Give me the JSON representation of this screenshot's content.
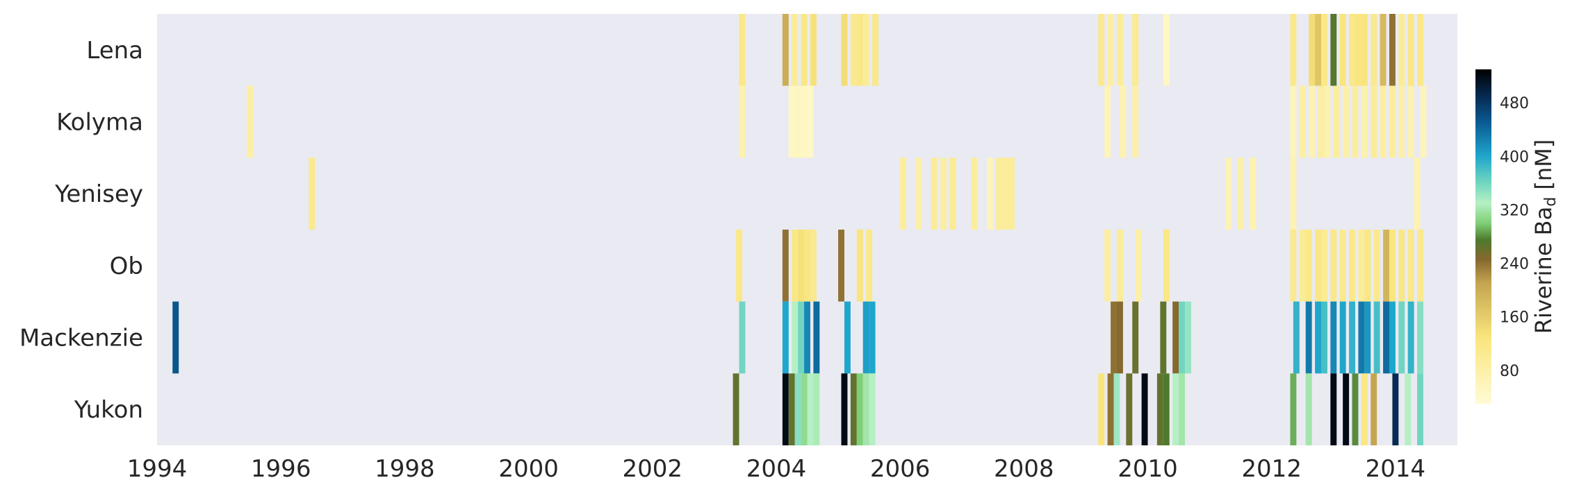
{
  "chart_data": {
    "type": "heatmap",
    "title": "",
    "xlabel": "",
    "ylabel": "",
    "xlim": [
      1994,
      2015
    ],
    "x_ticks": [
      1994,
      1996,
      1998,
      2000,
      2002,
      2004,
      2006,
      2008,
      2010,
      2012,
      2014
    ],
    "rivers": [
      "Lena",
      "Kolyma",
      "Yenisey",
      "Ob",
      "Mackenzie",
      "Yukon"
    ],
    "background_color": "#eaeaf2",
    "grid": false,
    "colorbar": {
      "label_main": "Riverine Ba",
      "label_sub": "d",
      "label_unit": " [nM]",
      "min": 30,
      "max": 530,
      "ticks": [
        80,
        160,
        240,
        320,
        400,
        480
      ],
      "colormap_stops": [
        {
          "v": 30,
          "c": "#fffbd5"
        },
        {
          "v": 130,
          "c": "#f9e57c"
        },
        {
          "v": 210,
          "c": "#c5a550"
        },
        {
          "v": 245,
          "c": "#86692e"
        },
        {
          "v": 275,
          "c": "#4e7a2e"
        },
        {
          "v": 300,
          "c": "#7fcf75"
        },
        {
          "v": 330,
          "c": "#b5f0c4"
        },
        {
          "v": 365,
          "c": "#67d1c0"
        },
        {
          "v": 400,
          "c": "#1fa6cc"
        },
        {
          "v": 450,
          "c": "#0a5c93"
        },
        {
          "v": 490,
          "c": "#062a53"
        },
        {
          "v": 530,
          "c": "#000000"
        }
      ]
    },
    "bar_width_years": 0.1,
    "series": [
      {
        "name": "Lena",
        "points": [
          {
            "t": 2003.45,
            "v": 115
          },
          {
            "t": 2004.15,
            "v": 200
          },
          {
            "t": 2004.3,
            "v": 100
          },
          {
            "t": 2004.45,
            "v": 120
          },
          {
            "t": 2004.6,
            "v": 135
          },
          {
            "t": 2005.1,
            "v": 140
          },
          {
            "t": 2005.25,
            "v": 110
          },
          {
            "t": 2005.35,
            "v": 120
          },
          {
            "t": 2005.45,
            "v": 100
          },
          {
            "t": 2005.6,
            "v": 115
          },
          {
            "t": 2009.25,
            "v": 110
          },
          {
            "t": 2009.4,
            "v": 85
          },
          {
            "t": 2009.55,
            "v": 100
          },
          {
            "t": 2009.8,
            "v": 105
          },
          {
            "t": 2010.3,
            "v": 50
          },
          {
            "t": 2012.35,
            "v": 115
          },
          {
            "t": 2012.65,
            "v": 140
          },
          {
            "t": 2012.75,
            "v": 170
          },
          {
            "t": 2012.85,
            "v": 115
          },
          {
            "t": 2013.0,
            "v": 270
          },
          {
            "t": 2013.15,
            "v": 130
          },
          {
            "t": 2013.3,
            "v": 115
          },
          {
            "t": 2013.4,
            "v": 125
          },
          {
            "t": 2013.5,
            "v": 130
          },
          {
            "t": 2013.65,
            "v": 110
          },
          {
            "t": 2013.8,
            "v": 185
          },
          {
            "t": 2013.95,
            "v": 240
          },
          {
            "t": 2014.1,
            "v": 100
          },
          {
            "t": 2014.25,
            "v": 120
          },
          {
            "t": 2014.4,
            "v": 115
          }
        ]
      },
      {
        "name": "Kolyma",
        "points": [
          {
            "t": 1995.5,
            "v": 85
          },
          {
            "t": 2003.45,
            "v": 75
          },
          {
            "t": 2004.25,
            "v": 50
          },
          {
            "t": 2004.35,
            "v": 55
          },
          {
            "t": 2004.45,
            "v": 50
          },
          {
            "t": 2004.55,
            "v": 45
          },
          {
            "t": 2009.35,
            "v": 60
          },
          {
            "t": 2009.6,
            "v": 70
          },
          {
            "t": 2009.8,
            "v": 80
          },
          {
            "t": 2012.35,
            "v": 60
          },
          {
            "t": 2012.5,
            "v": 85
          },
          {
            "t": 2012.65,
            "v": 70
          },
          {
            "t": 2012.8,
            "v": 90
          },
          {
            "t": 2012.9,
            "v": 75
          },
          {
            "t": 2013.05,
            "v": 95
          },
          {
            "t": 2013.2,
            "v": 80
          },
          {
            "t": 2013.35,
            "v": 90
          },
          {
            "t": 2013.5,
            "v": 75
          },
          {
            "t": 2013.65,
            "v": 100
          },
          {
            "t": 2013.8,
            "v": 85
          },
          {
            "t": 2013.95,
            "v": 95
          },
          {
            "t": 2014.1,
            "v": 80
          },
          {
            "t": 2014.25,
            "v": 70
          },
          {
            "t": 2014.45,
            "v": 60
          }
        ]
      },
      {
        "name": "Yenisey",
        "points": [
          {
            "t": 1996.5,
            "v": 110
          },
          {
            "t": 2006.05,
            "v": 95
          },
          {
            "t": 2006.3,
            "v": 80
          },
          {
            "t": 2006.55,
            "v": 100
          },
          {
            "t": 2006.7,
            "v": 90
          },
          {
            "t": 2006.85,
            "v": 105
          },
          {
            "t": 2007.2,
            "v": 95
          },
          {
            "t": 2007.45,
            "v": 60
          },
          {
            "t": 2007.6,
            "v": 100
          },
          {
            "t": 2007.7,
            "v": 95
          },
          {
            "t": 2007.8,
            "v": 100
          },
          {
            "t": 2011.3,
            "v": 65
          },
          {
            "t": 2011.5,
            "v": 80
          },
          {
            "t": 2011.7,
            "v": 70
          },
          {
            "t": 2012.35,
            "v": 70
          },
          {
            "t": 2014.35,
            "v": 70
          }
        ]
      },
      {
        "name": "Ob",
        "points": [
          {
            "t": 2003.4,
            "v": 115
          },
          {
            "t": 2004.15,
            "v": 240
          },
          {
            "t": 2004.3,
            "v": 120
          },
          {
            "t": 2004.4,
            "v": 135
          },
          {
            "t": 2004.5,
            "v": 125
          },
          {
            "t": 2004.6,
            "v": 110
          },
          {
            "t": 2005.05,
            "v": 240
          },
          {
            "t": 2005.35,
            "v": 130
          },
          {
            "t": 2005.5,
            "v": 115
          },
          {
            "t": 2009.35,
            "v": 90
          },
          {
            "t": 2009.55,
            "v": 100
          },
          {
            "t": 2009.85,
            "v": 80
          },
          {
            "t": 2010.3,
            "v": 120
          },
          {
            "t": 2012.35,
            "v": 110
          },
          {
            "t": 2012.5,
            "v": 100
          },
          {
            "t": 2012.6,
            "v": 115
          },
          {
            "t": 2012.75,
            "v": 120
          },
          {
            "t": 2012.85,
            "v": 105
          },
          {
            "t": 2013.0,
            "v": 115
          },
          {
            "t": 2013.15,
            "v": 110
          },
          {
            "t": 2013.3,
            "v": 115
          },
          {
            "t": 2013.45,
            "v": 100
          },
          {
            "t": 2013.55,
            "v": 120
          },
          {
            "t": 2013.7,
            "v": 110
          },
          {
            "t": 2013.85,
            "v": 190
          },
          {
            "t": 2013.95,
            "v": 125
          },
          {
            "t": 2014.1,
            "v": 120
          },
          {
            "t": 2014.25,
            "v": 115
          },
          {
            "t": 2014.4,
            "v": 110
          }
        ]
      },
      {
        "name": "Mackenzie",
        "points": [
          {
            "t": 1994.3,
            "v": 455
          },
          {
            "t": 2003.45,
            "v": 360
          },
          {
            "t": 2004.15,
            "v": 400
          },
          {
            "t": 2004.3,
            "v": 330
          },
          {
            "t": 2004.4,
            "v": 360
          },
          {
            "t": 2004.5,
            "v": 420
          },
          {
            "t": 2004.65,
            "v": 440
          },
          {
            "t": 2005.15,
            "v": 400
          },
          {
            "t": 2005.45,
            "v": 405
          },
          {
            "t": 2005.55,
            "v": 400
          },
          {
            "t": 2009.45,
            "v": 240
          },
          {
            "t": 2009.55,
            "v": 245
          },
          {
            "t": 2009.8,
            "v": 260
          },
          {
            "t": 2010.25,
            "v": 265
          },
          {
            "t": 2010.45,
            "v": 245
          },
          {
            "t": 2010.55,
            "v": 360
          },
          {
            "t": 2010.65,
            "v": 345
          },
          {
            "t": 2012.4,
            "v": 390
          },
          {
            "t": 2012.6,
            "v": 430
          },
          {
            "t": 2012.75,
            "v": 400
          },
          {
            "t": 2012.85,
            "v": 380
          },
          {
            "t": 2013.0,
            "v": 420
          },
          {
            "t": 2013.15,
            "v": 400
          },
          {
            "t": 2013.3,
            "v": 390
          },
          {
            "t": 2013.45,
            "v": 430
          },
          {
            "t": 2013.55,
            "v": 410
          },
          {
            "t": 2013.7,
            "v": 380
          },
          {
            "t": 2013.85,
            "v": 440
          },
          {
            "t": 2013.95,
            "v": 400
          },
          {
            "t": 2014.1,
            "v": 360
          },
          {
            "t": 2014.25,
            "v": 390
          },
          {
            "t": 2014.4,
            "v": 350
          }
        ]
      },
      {
        "name": "Yukon",
        "points": [
          {
            "t": 2003.35,
            "v": 265
          },
          {
            "t": 2004.15,
            "v": 520
          },
          {
            "t": 2004.25,
            "v": 265
          },
          {
            "t": 2004.35,
            "v": 350
          },
          {
            "t": 2004.45,
            "v": 310
          },
          {
            "t": 2004.55,
            "v": 330
          },
          {
            "t": 2004.65,
            "v": 325
          },
          {
            "t": 2005.1,
            "v": 520
          },
          {
            "t": 2005.25,
            "v": 265
          },
          {
            "t": 2005.35,
            "v": 300
          },
          {
            "t": 2005.45,
            "v": 320
          },
          {
            "t": 2005.55,
            "v": 330
          },
          {
            "t": 2009.25,
            "v": 130
          },
          {
            "t": 2009.4,
            "v": 240
          },
          {
            "t": 2009.5,
            "v": 340
          },
          {
            "t": 2009.7,
            "v": 260
          },
          {
            "t": 2009.95,
            "v": 520
          },
          {
            "t": 2010.2,
            "v": 265
          },
          {
            "t": 2010.3,
            "v": 275
          },
          {
            "t": 2010.45,
            "v": 330
          },
          {
            "t": 2010.55,
            "v": 320
          },
          {
            "t": 2012.35,
            "v": 290
          },
          {
            "t": 2012.6,
            "v": 320
          },
          {
            "t": 2013.0,
            "v": 520
          },
          {
            "t": 2013.2,
            "v": 520
          },
          {
            "t": 2013.35,
            "v": 280
          },
          {
            "t": 2013.5,
            "v": 120
          },
          {
            "t": 2013.65,
            "v": 210
          },
          {
            "t": 2014.0,
            "v": 490
          },
          {
            "t": 2014.2,
            "v": 330
          },
          {
            "t": 2014.4,
            "v": 360
          }
        ]
      }
    ]
  }
}
